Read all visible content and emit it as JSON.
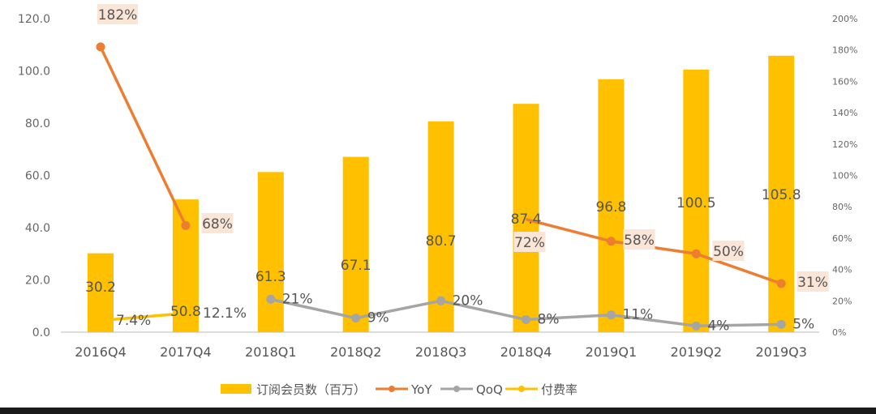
{
  "chart_data": {
    "type": "bar+line",
    "categories": [
      "2016Q4",
      "2017Q4",
      "2018Q1",
      "2018Q2",
      "2018Q3",
      "2018Q4",
      "2019Q1",
      "2019Q2",
      "2019Q3"
    ],
    "y_left": {
      "range": [
        0,
        120
      ],
      "ticks": [
        "0.0",
        "20.0",
        "40.0",
        "60.0",
        "80.0",
        "100.0",
        "120.0"
      ]
    },
    "y_right": {
      "range": [
        0,
        200
      ],
      "ticks": [
        "0%",
        "20%",
        "40%",
        "60%",
        "80%",
        "100%",
        "120%",
        "140%",
        "160%",
        "180%",
        "200%"
      ]
    },
    "grid": false,
    "legend_position": "bottom",
    "series": [
      {
        "name": "订阅会员数（百万）",
        "kind": "bar",
        "axis": "left",
        "color": "#FFC000",
        "values": [
          30.2,
          50.8,
          61.3,
          67.1,
          80.7,
          87.4,
          96.8,
          100.5,
          105.8
        ],
        "labels": [
          "30.2",
          "50.8",
          "61.3",
          "67.1",
          "80.7",
          "87.4",
          "96.8",
          "100.5",
          "105.8"
        ]
      },
      {
        "name": "YoY",
        "kind": "line",
        "axis": "right",
        "color": "#ED7D31",
        "values": [
          182,
          68,
          null,
          null,
          null,
          72,
          58,
          50,
          31
        ],
        "labels": [
          "182%",
          "68%",
          null,
          null,
          null,
          "72%",
          "58%",
          "50%",
          "31%"
        ]
      },
      {
        "name": "QoQ",
        "kind": "line",
        "axis": "right",
        "color": "#A5A5A5",
        "values": [
          null,
          null,
          21,
          9,
          20,
          8,
          11,
          4,
          5
        ],
        "labels": [
          null,
          null,
          "21%",
          "9%",
          "20%",
          "8%",
          "11%",
          "4%",
          "5%"
        ]
      },
      {
        "name": "付费率",
        "kind": "line",
        "axis": "right",
        "color": "#FFC000",
        "values": [
          7.4,
          12.1,
          null,
          null,
          null,
          null,
          null,
          null,
          null
        ],
        "labels": [
          "7.4%",
          "12.1%",
          null,
          null,
          null,
          null,
          null,
          null,
          null
        ]
      }
    ],
    "label_background": "#FBE5D6"
  }
}
